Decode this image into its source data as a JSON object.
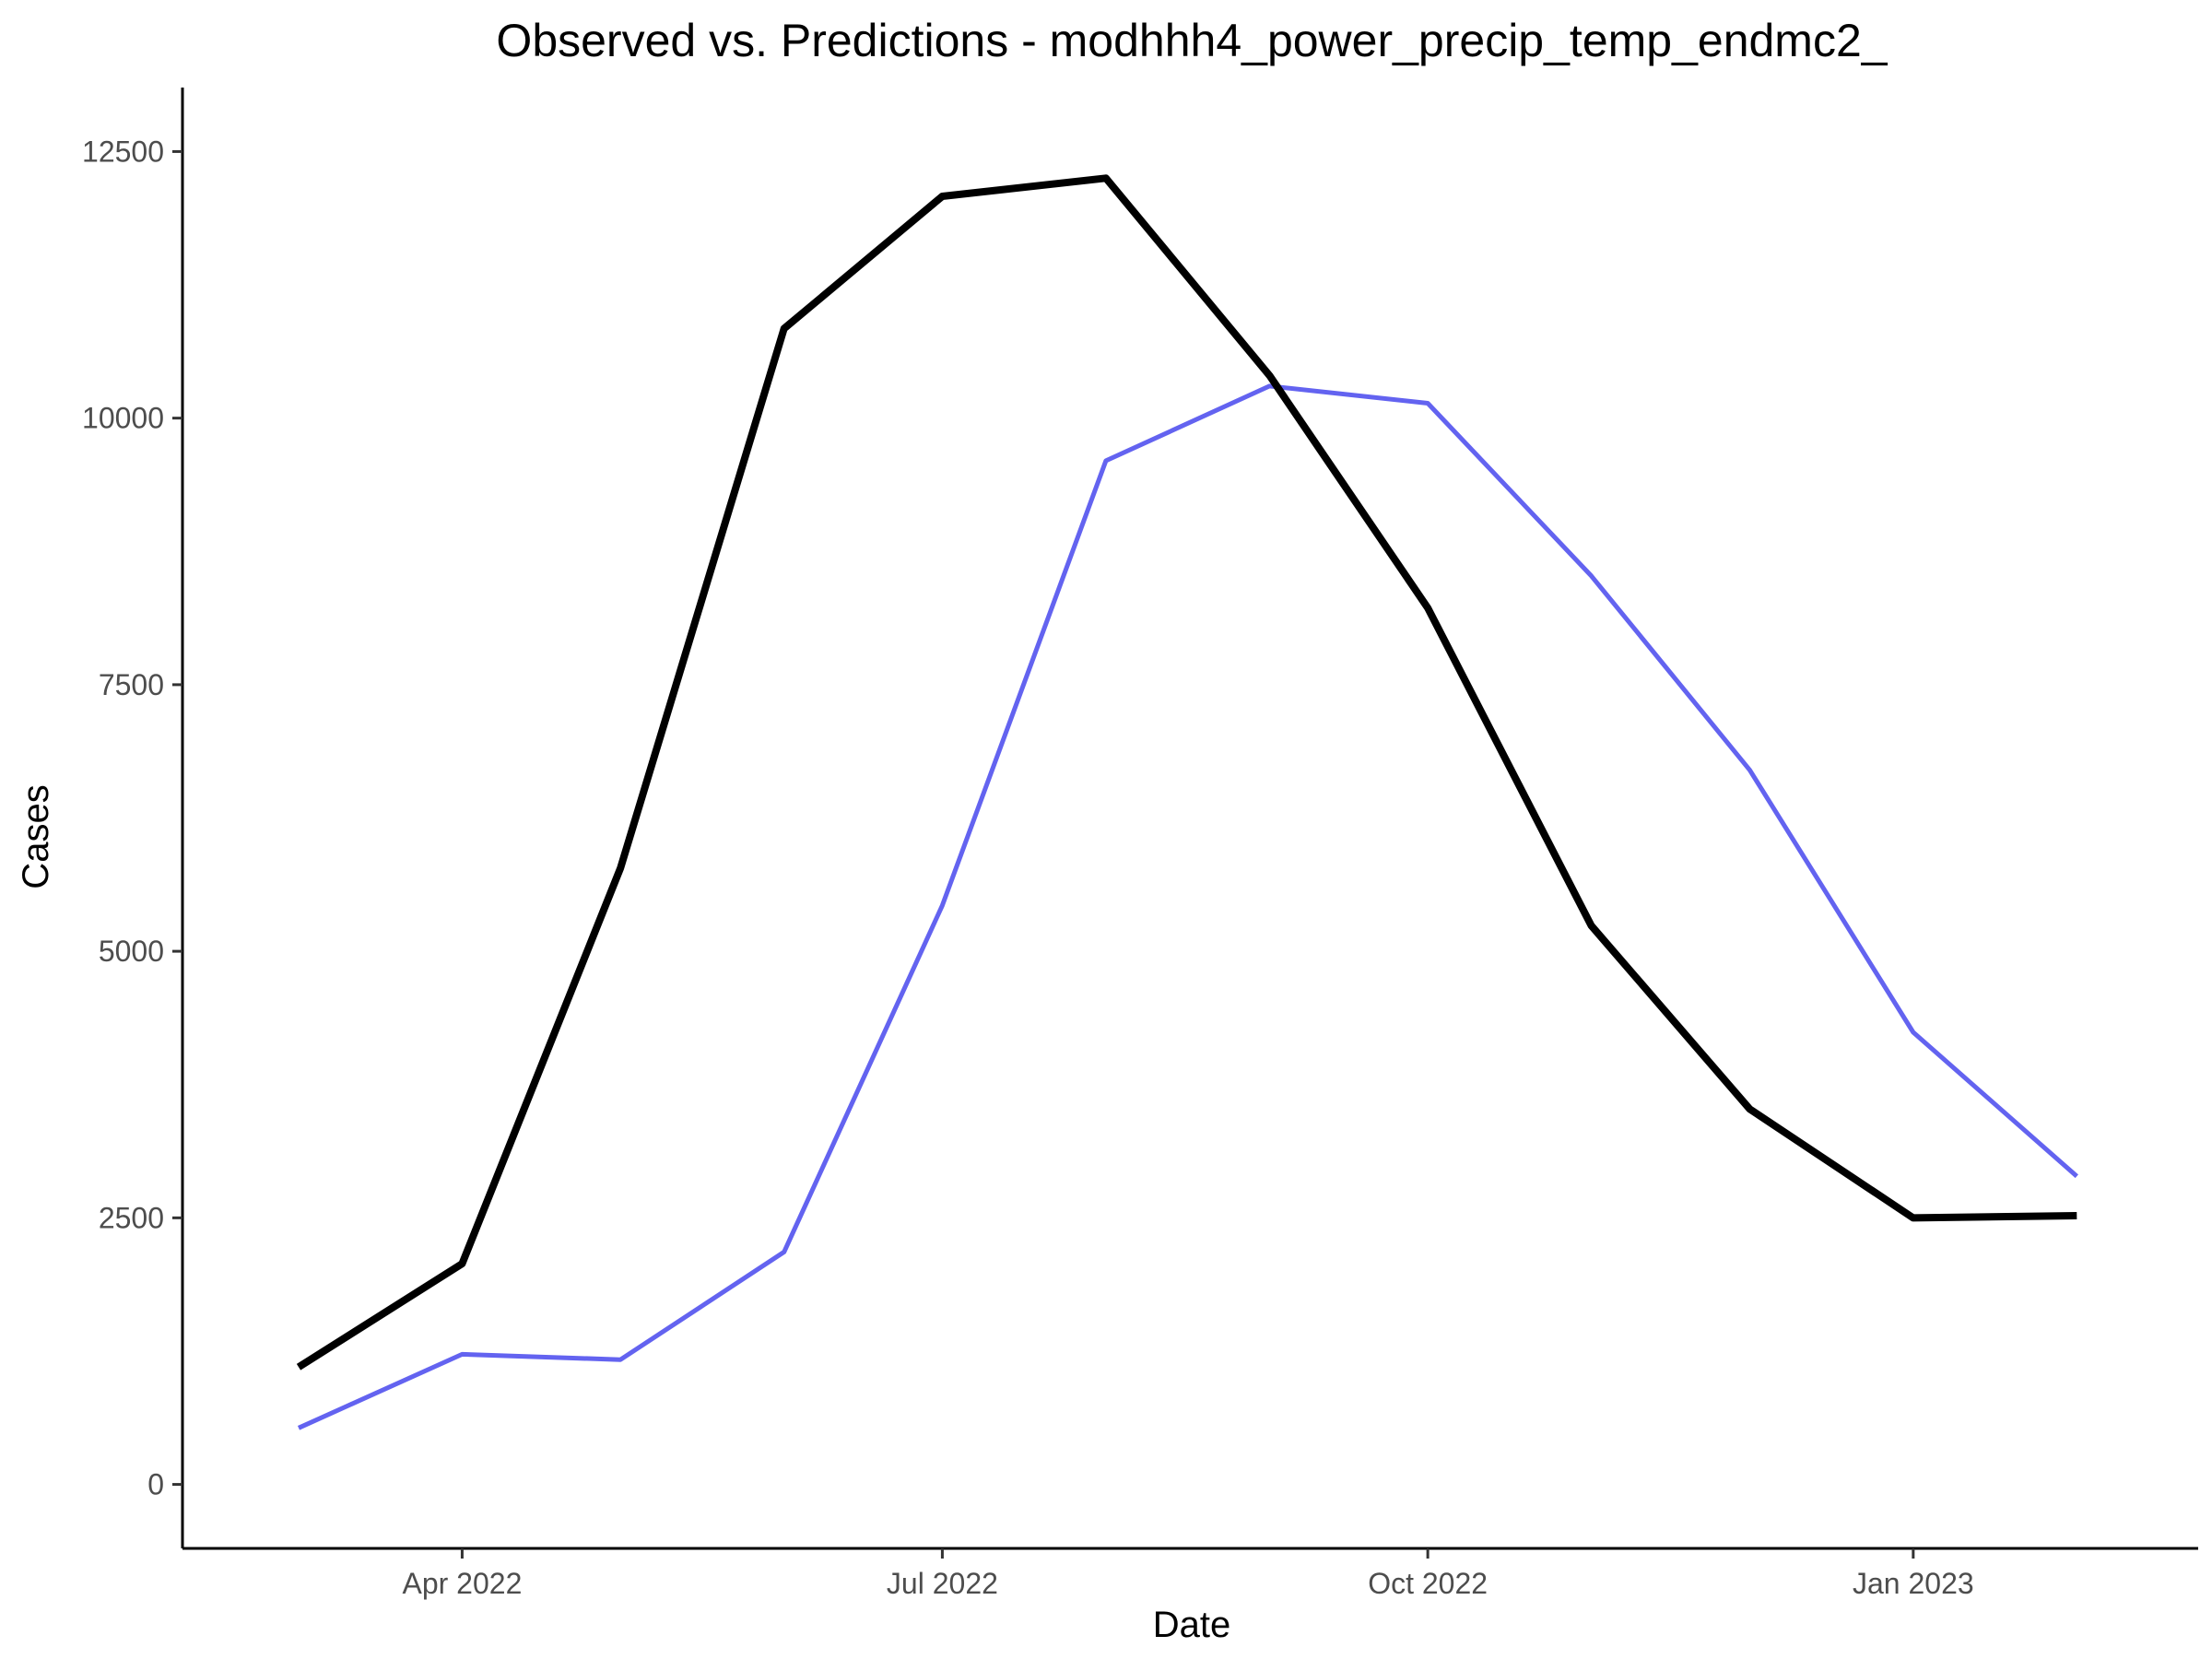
{
  "chart_data": {
    "type": "line",
    "title": "Observed vs. Predictions - modhhh4_power_precip_temp_endmc2_",
    "xlabel": "Date",
    "ylabel": "Cases",
    "x": [
      "2022-03-01",
      "2022-04-01",
      "2022-05-01",
      "2022-06-01",
      "2022-07-01",
      "2022-08-01",
      "2022-09-01",
      "2022-10-01",
      "2022-11-01",
      "2022-12-01",
      "2023-01-01",
      "2023-02-01"
    ],
    "x_ticks": [
      {
        "date": "2022-04-01",
        "label": "Apr 2022"
      },
      {
        "date": "2022-07-01",
        "label": "Jul 2022"
      },
      {
        "date": "2022-10-01",
        "label": "Oct 2022"
      },
      {
        "date": "2023-01-01",
        "label": "Jan 2023"
      }
    ],
    "y_ticks": [
      0,
      2500,
      5000,
      7500,
      10000,
      12500
    ],
    "xlim": [
      "2022-02-07",
      "2023-02-24"
    ],
    "ylim": [
      -600,
      13100
    ],
    "grid": false,
    "series": [
      {
        "values": [
          1100,
          2070,
          5780,
          10840,
          12080,
          12250,
          10400,
          8220,
          5240,
          3520,
          2500,
          2520
        ],
        "color": "#000000",
        "stroke_width": 8
      },
      {
        "values": [
          530,
          1220,
          1170,
          2180,
          5430,
          9600,
          10300,
          10140,
          8520,
          6700,
          4240,
          2890
        ],
        "color": "#6363f0",
        "stroke_width": 5
      }
    ]
  }
}
